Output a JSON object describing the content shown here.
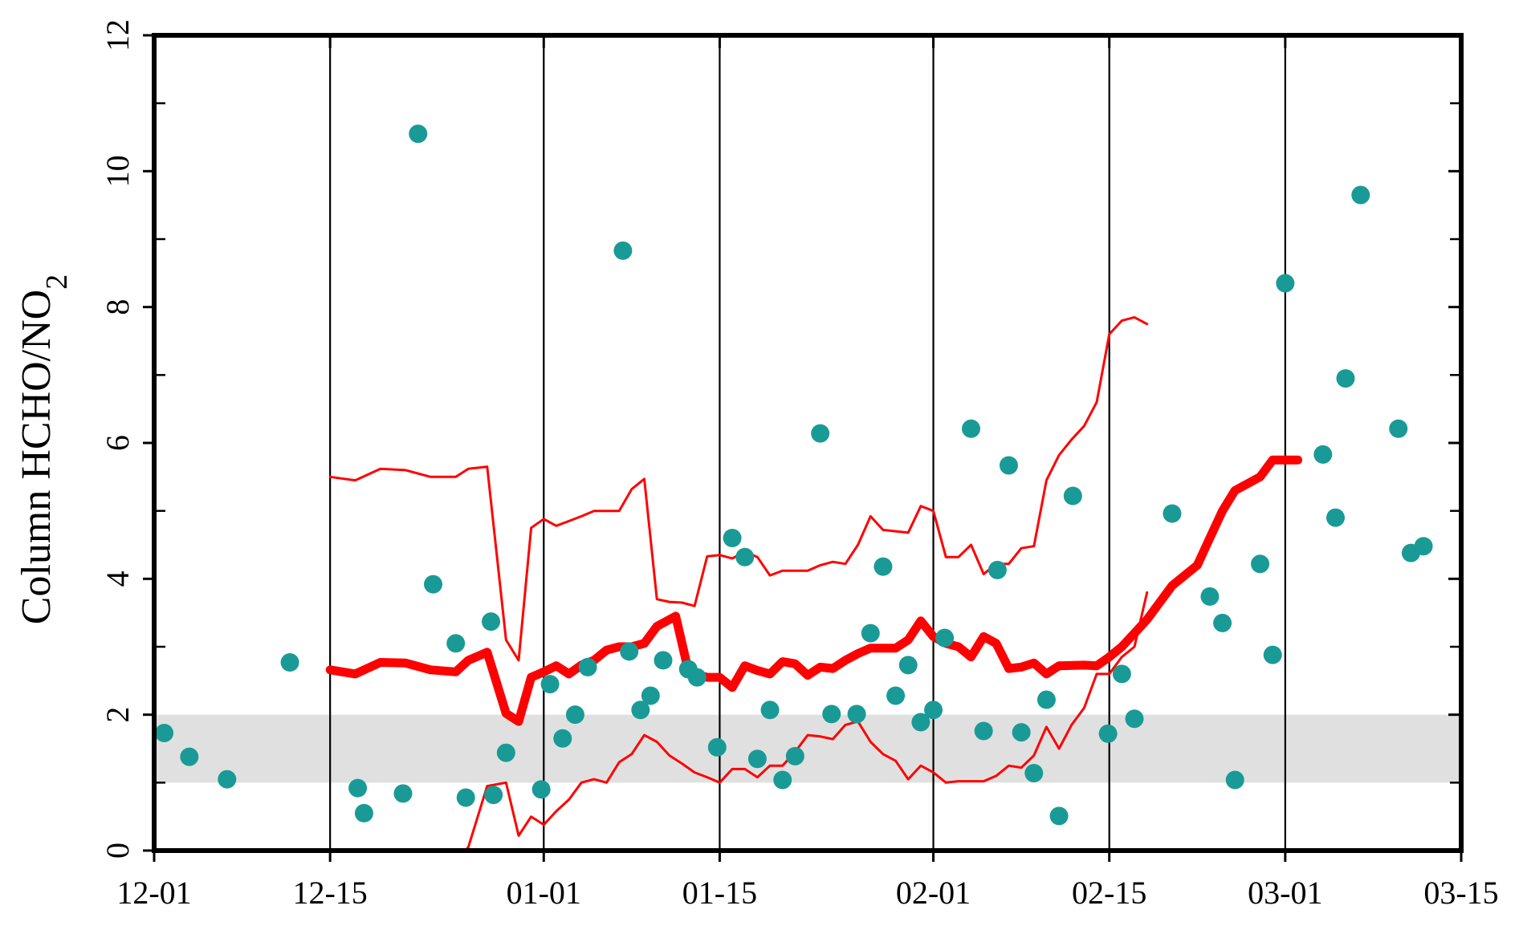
{
  "chart_data": {
    "type": "scatter",
    "ylabel": "Column HCHO/NO",
    "ylabel_sub": "2",
    "xlim": [
      0,
      104
    ],
    "ylim": [
      0,
      12
    ],
    "x_ticks": [
      {
        "x": 0,
        "label": "12-01"
      },
      {
        "x": 14,
        "label": "12-15"
      },
      {
        "x": 31,
        "label": "01-01"
      },
      {
        "x": 45,
        "label": "01-15"
      },
      {
        "x": 62,
        "label": "02-01"
      },
      {
        "x": 76,
        "label": "02-15"
      },
      {
        "x": 90,
        "label": "03-01"
      },
      {
        "x": 104,
        "label": "03-15"
      }
    ],
    "y_ticks": [
      0,
      2,
      4,
      6,
      8,
      10,
      12
    ],
    "vertical_gridlines_at": [
      14,
      31,
      45,
      62,
      76,
      90
    ],
    "shaded_band": {
      "y0": 1,
      "y1": 2,
      "color": "#e0e0e0"
    },
    "colors": {
      "points": "#1a9a96",
      "lines": "#ff0000",
      "band": "#e0e0e0",
      "axis": "#000000"
    },
    "series": [
      {
        "kind": "points",
        "values": [
          [
            0.8,
            1.73
          ],
          [
            2.8,
            1.38
          ],
          [
            5.8,
            1.05
          ],
          [
            10.8,
            2.77
          ],
          [
            16.2,
            0.92
          ],
          [
            16.7,
            0.55
          ],
          [
            19.8,
            0.84
          ],
          [
            21,
            10.55
          ],
          [
            22.2,
            3.92
          ],
          [
            24,
            3.05
          ],
          [
            24.8,
            0.78
          ],
          [
            26.8,
            3.37
          ],
          [
            27,
            0.82
          ],
          [
            28,
            1.44
          ],
          [
            30.8,
            0.9
          ],
          [
            31.5,
            2.45
          ],
          [
            32.5,
            1.65
          ],
          [
            33.5,
            2
          ],
          [
            34.5,
            2.7
          ],
          [
            37.3,
            8.83
          ],
          [
            37.8,
            2.93
          ],
          [
            38.7,
            2.07
          ],
          [
            39.5,
            2.28
          ],
          [
            40.5,
            2.8
          ],
          [
            42.5,
            2.67
          ],
          [
            43.2,
            2.55
          ],
          [
            44.8,
            1.52
          ],
          [
            46,
            4.6
          ],
          [
            47,
            4.32
          ],
          [
            48,
            1.35
          ],
          [
            49,
            2.07
          ],
          [
            50,
            1.04
          ],
          [
            51,
            1.39
          ],
          [
            53,
            6.14
          ],
          [
            53.9,
            2.01
          ],
          [
            55.9,
            2.01
          ],
          [
            57,
            3.2
          ],
          [
            58,
            4.18
          ],
          [
            59,
            2.28
          ],
          [
            60,
            2.73
          ],
          [
            61,
            1.89
          ],
          [
            62,
            2.07
          ],
          [
            62.9,
            3.13
          ],
          [
            65,
            6.21
          ],
          [
            66,
            1.76
          ],
          [
            67.1,
            4.13
          ],
          [
            68,
            5.67
          ],
          [
            69,
            1.74
          ],
          [
            70,
            1.14
          ],
          [
            71,
            2.22
          ],
          [
            72,
            0.51
          ],
          [
            73.1,
            5.22
          ],
          [
            75.9,
            1.72
          ],
          [
            77,
            2.6
          ],
          [
            78,
            1.94
          ],
          [
            81,
            4.96
          ],
          [
            84,
            3.74
          ],
          [
            85,
            3.35
          ],
          [
            86,
            1.04
          ],
          [
            88,
            4.22
          ],
          [
            89,
            2.88
          ],
          [
            90,
            8.35
          ],
          [
            93,
            5.83
          ],
          [
            94,
            4.9
          ],
          [
            94.8,
            6.95
          ],
          [
            96,
            9.65
          ],
          [
            99,
            6.21
          ],
          [
            100,
            4.38
          ],
          [
            101,
            4.48
          ]
        ]
      },
      {
        "kind": "line",
        "style": "thick",
        "values": [
          [
            14,
            2.66
          ],
          [
            16,
            2.6
          ],
          [
            18,
            2.77
          ],
          [
            20,
            2.76
          ],
          [
            22,
            2.66
          ],
          [
            24,
            2.63
          ],
          [
            25,
            2.8
          ],
          [
            26.5,
            2.92
          ],
          [
            28,
            2.02
          ],
          [
            29,
            1.9
          ],
          [
            30,
            2.55
          ],
          [
            31,
            2.63
          ],
          [
            32,
            2.72
          ],
          [
            33,
            2.6
          ],
          [
            34,
            2.73
          ],
          [
            35,
            2.8
          ],
          [
            36,
            2.95
          ],
          [
            37,
            3.0
          ],
          [
            38,
            3.0
          ],
          [
            39,
            3.05
          ],
          [
            40,
            3.3
          ],
          [
            41.5,
            3.45
          ],
          [
            42.5,
            2.65
          ],
          [
            43,
            2.6
          ],
          [
            44,
            2.55
          ],
          [
            45,
            2.55
          ],
          [
            46,
            2.4
          ],
          [
            47,
            2.72
          ],
          [
            48,
            2.65
          ],
          [
            49,
            2.6
          ],
          [
            50,
            2.78
          ],
          [
            51,
            2.75
          ],
          [
            52,
            2.58
          ],
          [
            53,
            2.7
          ],
          [
            54,
            2.68
          ],
          [
            55,
            2.8
          ],
          [
            56,
            2.9
          ],
          [
            57,
            2.98
          ],
          [
            58,
            2.98
          ],
          [
            59,
            2.98
          ],
          [
            60,
            3.1
          ],
          [
            61,
            3.38
          ],
          [
            62,
            3.15
          ],
          [
            63,
            3.05
          ],
          [
            64,
            3.0
          ],
          [
            65,
            2.85
          ],
          [
            66,
            3.15
          ],
          [
            67,
            3.05
          ],
          [
            68,
            2.68
          ],
          [
            69,
            2.7
          ],
          [
            70,
            2.76
          ],
          [
            71,
            2.6
          ],
          [
            72,
            2.72
          ],
          [
            74,
            2.73
          ],
          [
            75,
            2.72
          ],
          [
            76,
            2.85
          ],
          [
            77,
            3.0
          ],
          [
            78,
            3.2
          ],
          [
            79,
            3.4
          ],
          [
            80,
            3.65
          ],
          [
            81,
            3.9
          ],
          [
            82,
            4.05
          ],
          [
            83,
            4.2
          ],
          [
            84,
            4.6
          ],
          [
            85,
            5.0
          ],
          [
            86,
            5.3
          ],
          [
            87,
            5.4
          ],
          [
            88,
            5.5
          ],
          [
            89,
            5.75
          ],
          [
            90,
            5.75
          ],
          [
            91,
            5.75
          ]
        ]
      },
      {
        "kind": "line",
        "style": "thin",
        "values": [
          [
            14,
            5.5
          ],
          [
            16,
            5.45
          ],
          [
            18,
            5.62
          ],
          [
            20,
            5.6
          ],
          [
            22,
            5.5
          ],
          [
            24,
            5.5
          ],
          [
            25,
            5.62
          ],
          [
            26.5,
            5.65
          ],
          [
            28,
            3.1
          ],
          [
            29,
            2.8
          ],
          [
            30,
            4.75
          ],
          [
            31,
            4.88
          ],
          [
            32,
            4.78
          ],
          [
            33,
            4.85
          ],
          [
            34,
            4.92
          ],
          [
            35,
            5.0
          ],
          [
            36,
            5.0
          ],
          [
            37,
            5.0
          ],
          [
            38,
            5.32
          ],
          [
            39,
            5.47
          ],
          [
            40,
            3.7
          ],
          [
            41,
            3.66
          ],
          [
            42,
            3.65
          ],
          [
            43,
            3.6
          ],
          [
            44,
            4.33
          ],
          [
            45,
            4.35
          ],
          [
            46,
            4.3
          ],
          [
            47,
            4.4
          ],
          [
            48,
            4.32
          ],
          [
            49,
            4.05
          ],
          [
            50,
            4.12
          ],
          [
            51,
            4.12
          ],
          [
            52,
            4.12
          ],
          [
            53,
            4.2
          ],
          [
            54,
            4.25
          ],
          [
            55,
            4.22
          ],
          [
            56,
            4.5
          ],
          [
            57,
            4.92
          ],
          [
            58,
            4.72
          ],
          [
            59,
            4.7
          ],
          [
            60,
            4.68
          ],
          [
            61,
            5.07
          ],
          [
            62,
            5.0
          ],
          [
            63,
            4.32
          ],
          [
            64,
            4.32
          ],
          [
            65,
            4.5
          ],
          [
            66,
            4.07
          ],
          [
            67,
            4.22
          ],
          [
            68,
            4.22
          ],
          [
            69,
            4.45
          ],
          [
            70,
            4.48
          ],
          [
            71,
            5.45
          ],
          [
            72,
            5.82
          ],
          [
            73,
            6.05
          ],
          [
            74,
            6.25
          ],
          [
            75,
            6.6
          ],
          [
            76,
            7.6
          ],
          [
            77,
            7.8
          ],
          [
            78,
            7.85
          ],
          [
            79,
            7.75
          ]
        ]
      },
      {
        "kind": "line",
        "style": "thin",
        "values": [
          [
            14,
            -0.3
          ],
          [
            16,
            -0.4
          ],
          [
            18,
            -0.25
          ],
          [
            20,
            -0.27
          ],
          [
            22,
            -0.4
          ],
          [
            23,
            -0.42
          ],
          [
            24,
            -0.15
          ],
          [
            25,
            0.05
          ],
          [
            26.5,
            0.95
          ],
          [
            28,
            1.0
          ],
          [
            29,
            0.22
          ],
          [
            30,
            0.5
          ],
          [
            31,
            0.38
          ],
          [
            32,
            0.58
          ],
          [
            33,
            0.75
          ],
          [
            34,
            1.0
          ],
          [
            35,
            1.05
          ],
          [
            36,
            1.0
          ],
          [
            37,
            1.3
          ],
          [
            38,
            1.42
          ],
          [
            39,
            1.7
          ],
          [
            40,
            1.6
          ],
          [
            41,
            1.4
          ],
          [
            42,
            1.28
          ],
          [
            43,
            1.15
          ],
          [
            44,
            1.08
          ],
          [
            45,
            1.0
          ],
          [
            46,
            1.2
          ],
          [
            47,
            1.2
          ],
          [
            48,
            1.08
          ],
          [
            49,
            1.25
          ],
          [
            50,
            1.25
          ],
          [
            51,
            1.45
          ],
          [
            52,
            1.7
          ],
          [
            53,
            1.68
          ],
          [
            54,
            1.64
          ],
          [
            55,
            1.85
          ],
          [
            56,
            1.9
          ],
          [
            57,
            1.6
          ],
          [
            58,
            1.42
          ],
          [
            59,
            1.32
          ],
          [
            60,
            1.05
          ],
          [
            61,
            1.25
          ],
          [
            62,
            1.15
          ],
          [
            63,
            1.0
          ],
          [
            64,
            1.02
          ],
          [
            65,
            1.02
          ],
          [
            66,
            1.02
          ],
          [
            67,
            1.1
          ],
          [
            68,
            1.25
          ],
          [
            69,
            1.22
          ],
          [
            70,
            1.4
          ],
          [
            71,
            1.82
          ],
          [
            72,
            1.5
          ],
          [
            73,
            1.85
          ],
          [
            74,
            2.1
          ],
          [
            75,
            2.6
          ],
          [
            76,
            2.6
          ],
          [
            77,
            2.85
          ],
          [
            78,
            3.0
          ],
          [
            79,
            3.8
          ]
        ]
      }
    ]
  }
}
